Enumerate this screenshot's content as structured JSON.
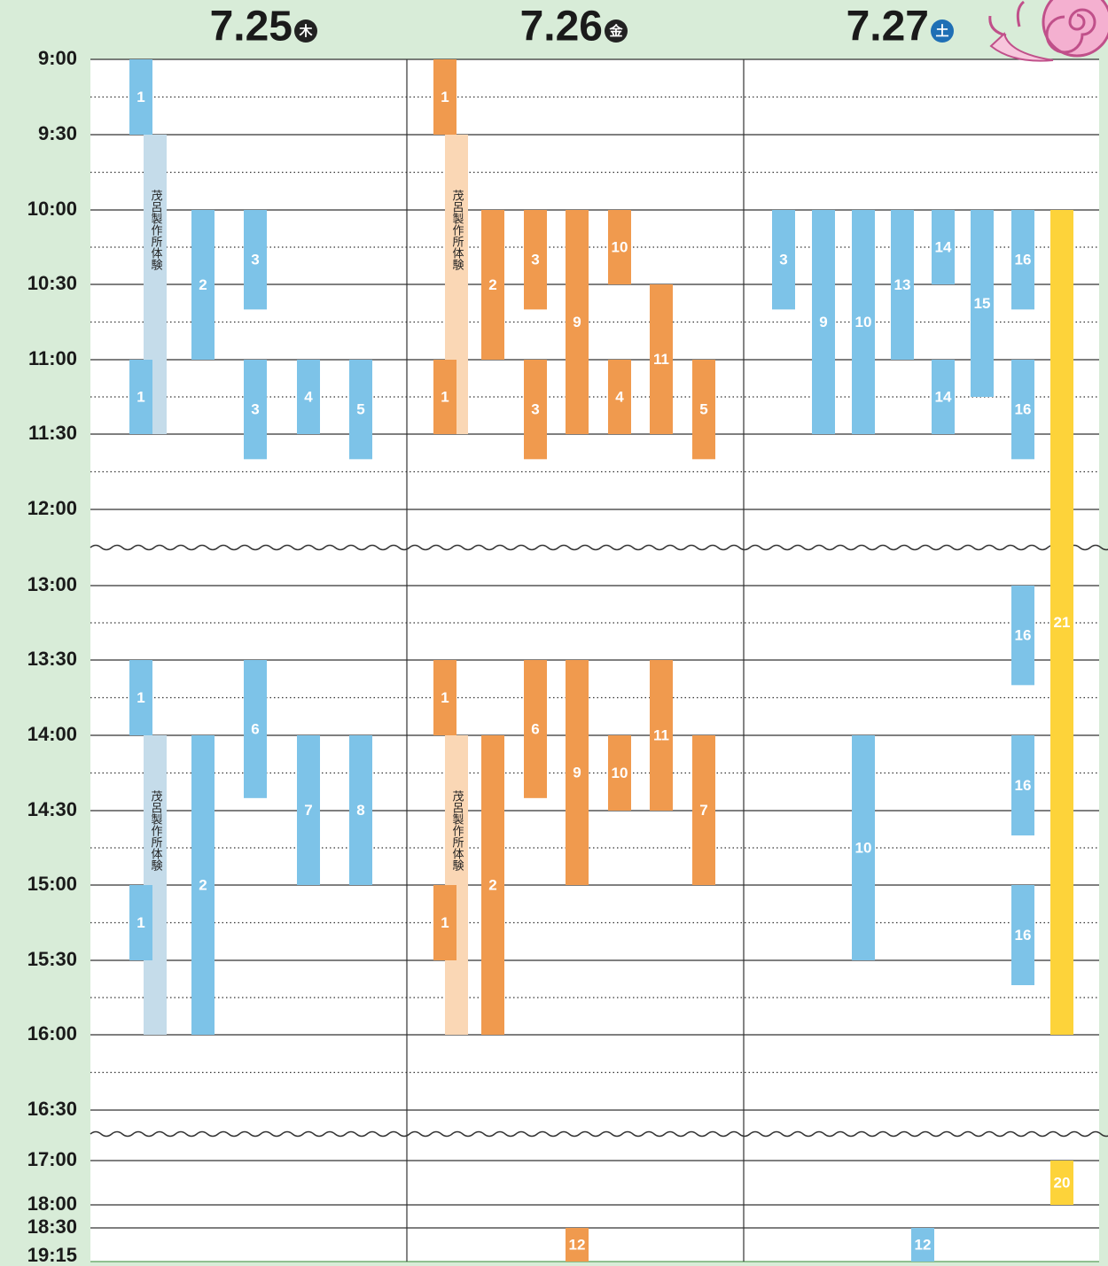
{
  "times": [
    "9:00",
    "9:30",
    "10:00",
    "10:30",
    "11:00",
    "11:30",
    "12:00",
    "13:00",
    "13:30",
    "14:00",
    "14:30",
    "15:00",
    "15:30",
    "16:00",
    "16:30",
    "17:00",
    "18:00",
    "18:30",
    "19:15"
  ],
  "days": [
    {
      "date": "7.25",
      "weekday": "木",
      "badge_color": "#222222",
      "lanes": [
        {
          "color": "#c5dcea",
          "vertical": true,
          "events": [
            {
              "label": "茂呂製作所体験",
              "start": "9:30",
              "end": "11:30"
            },
            {
              "label": "茂呂製作所体験",
              "start": "14:00",
              "end": "16:00"
            }
          ]
        },
        {
          "color": "#7dc3e8",
          "events": [
            {
              "label": "1",
              "start": "9:00",
              "end": "9:30"
            },
            {
              "label": "1",
              "start": "11:00",
              "end": "11:30"
            },
            {
              "label": "1",
              "start": "13:30",
              "end": "14:00"
            },
            {
              "label": "1",
              "start": "15:00",
              "end": "15:30"
            }
          ]
        },
        {
          "color": "#7dc3e8",
          "events": [
            {
              "label": "2",
              "start": "10:00",
              "end": "11:00"
            },
            {
              "label": "2",
              "start": "14:00",
              "end": "16:00"
            }
          ]
        },
        {
          "color": "#7dc3e8",
          "events": [
            {
              "label": "3",
              "start": "10:00",
              "end": "10:40"
            },
            {
              "label": "3",
              "start": "11:00",
              "end": "11:40"
            },
            {
              "label": "6",
              "start": "13:30",
              "end": "14:25"
            }
          ]
        },
        {
          "color": "#7dc3e8",
          "events": [
            {
              "label": "4",
              "start": "11:00",
              "end": "11:30"
            },
            {
              "label": "7",
              "start": "14:00",
              "end": "15:00"
            }
          ]
        },
        {
          "color": "#7dc3e8",
          "events": [
            {
              "label": "5",
              "start": "11:00",
              "end": "11:40"
            },
            {
              "label": "8",
              "start": "14:00",
              "end": "15:00"
            }
          ]
        }
      ]
    },
    {
      "date": "7.26",
      "weekday": "金",
      "badge_color": "#222222",
      "lanes": [
        {
          "color": "#fad7b5",
          "vertical": true,
          "events": [
            {
              "label": "茂呂製作所体験",
              "start": "9:30",
              "end": "11:30"
            },
            {
              "label": "茂呂製作所体験",
              "start": "14:00",
              "end": "16:00"
            }
          ]
        },
        {
          "color": "#f09a4e",
          "events": [
            {
              "label": "1",
              "start": "9:00",
              "end": "9:30"
            },
            {
              "label": "1",
              "start": "11:00",
              "end": "11:30"
            },
            {
              "label": "1",
              "start": "13:30",
              "end": "14:00"
            },
            {
              "label": "1",
              "start": "15:00",
              "end": "15:30"
            }
          ]
        },
        {
          "color": "#f09a4e",
          "events": [
            {
              "label": "2",
              "start": "10:00",
              "end": "11:00"
            },
            {
              "label": "2",
              "start": "14:00",
              "end": "16:00"
            }
          ]
        },
        {
          "color": "#f09a4e",
          "events": [
            {
              "label": "3",
              "start": "10:00",
              "end": "10:40"
            },
            {
              "label": "3",
              "start": "11:00",
              "end": "11:40"
            },
            {
              "label": "6",
              "start": "13:30",
              "end": "14:25"
            }
          ]
        },
        {
          "color": "#f09a4e",
          "events": [
            {
              "label": "9",
              "start": "10:00",
              "end": "11:30"
            },
            {
              "label": "9",
              "start": "13:30",
              "end": "15:00"
            },
            {
              "label": "12",
              "start": "18:30",
              "end": "19:15"
            }
          ]
        },
        {
          "color": "#f09a4e",
          "events": [
            {
              "label": "10",
              "start": "10:00",
              "end": "10:30"
            },
            {
              "label": "4",
              "start": "11:00",
              "end": "11:30"
            },
            {
              "label": "10",
              "start": "14:00",
              "end": "14:30"
            }
          ]
        },
        {
          "color": "#f09a4e",
          "events": [
            {
              "label": "11",
              "start": "10:30",
              "end": "11:30"
            },
            {
              "label": "11",
              "start": "13:30",
              "end": "14:30"
            }
          ]
        },
        {
          "color": "#f09a4e",
          "events": [
            {
              "label": "5",
              "start": "11:00",
              "end": "11:40"
            },
            {
              "label": "7",
              "start": "14:00",
              "end": "15:00"
            }
          ]
        }
      ]
    },
    {
      "date": "7.27",
      "weekday": "土",
      "badge_color": "#1f6fb5",
      "lanes": [
        {
          "color": "#7dc3e8",
          "events": [
            {
              "label": "3",
              "start": "10:00",
              "end": "10:40"
            }
          ]
        },
        {
          "color": "#7dc3e8",
          "events": [
            {
              "label": "9",
              "start": "10:00",
              "end": "11:30"
            }
          ]
        },
        {
          "color": "#7dc3e8",
          "events": [
            {
              "label": "10",
              "start": "10:00",
              "end": "11:30"
            },
            {
              "label": "10",
              "start": "14:00",
              "end": "15:30"
            }
          ]
        },
        {
          "color": "#7dc3e8",
          "events": [
            {
              "label": "13",
              "start": "10:00",
              "end": "11:00"
            }
          ]
        },
        {
          "color": "#7dc3e8",
          "events": [
            {
              "label": "14",
              "start": "10:00",
              "end": "10:30"
            },
            {
              "label": "14",
              "start": "11:00",
              "end": "11:30"
            }
          ]
        },
        {
          "color": "#7dc3e8",
          "events": [
            {
              "label": "15",
              "start": "10:00",
              "end": "11:15"
            }
          ]
        },
        {
          "color": "#7dc3e8",
          "events": [
            {
              "label": "16",
              "start": "10:00",
              "end": "10:40"
            },
            {
              "label": "16",
              "start": "11:00",
              "end": "11:40"
            },
            {
              "label": "16",
              "start": "13:00",
              "end": "13:40"
            },
            {
              "label": "16",
              "start": "14:00",
              "end": "14:40"
            },
            {
              "label": "16",
              "start": "15:00",
              "end": "15:40"
            }
          ]
        },
        {
          "color": "#fdd33a",
          "events": [
            {
              "label": "21",
              "start": "10:00",
              "end": "16:00"
            },
            {
              "label": "20",
              "start": "17:00",
              "end": "18:00"
            }
          ]
        },
        {
          "color": "#7dc3e8",
          "events": [
            {
              "label": "12",
              "start": "18:30",
              "end": "19:15"
            }
          ]
        }
      ]
    }
  ]
}
